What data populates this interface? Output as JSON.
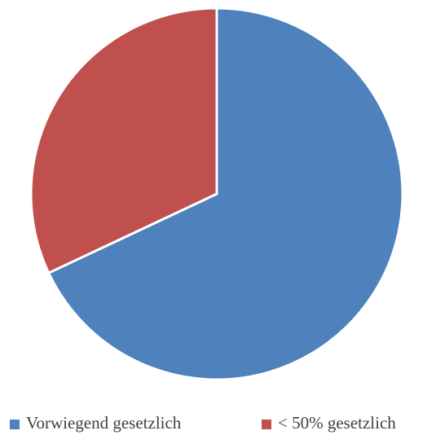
{
  "chart_data": {
    "type": "pie",
    "categories": [
      "Vorwiegend gesetzlich",
      "< 50% gesetzlich"
    ],
    "values": [
      68,
      32
    ],
    "colors": [
      "#4f81bd",
      "#c0504d"
    ],
    "legend": "bottom"
  }
}
